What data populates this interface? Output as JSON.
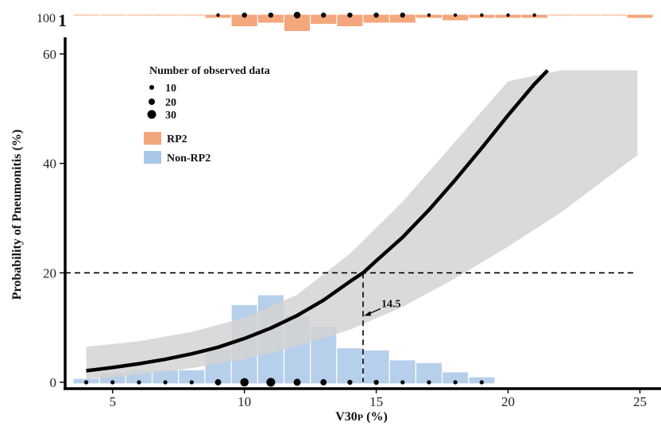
{
  "chart_data": {
    "type": "line",
    "ylabel": "Probability of Pneumonitis (%)",
    "xlabel_main": "V30",
    "xlabel_sub": "P",
    "xlabel_unit": " (%)",
    "xlim": [
      3.2,
      25.8
    ],
    "ylim": [
      0,
      61
    ],
    "x_ticks": [
      5,
      10,
      15,
      20,
      25
    ],
    "y_ticks": [
      0,
      20,
      40,
      60
    ],
    "curve": {
      "x": [
        4,
        5,
        6,
        7,
        8,
        9,
        10,
        11,
        12,
        13,
        14,
        14.5,
        15,
        16,
        17,
        18,
        19,
        20,
        21,
        21.5
      ],
      "y": [
        2.1,
        2.7,
        3.4,
        4.2,
        5.2,
        6.4,
        8.0,
        9.9,
        12.2,
        15.0,
        18.4,
        20.0,
        22.2,
        26.5,
        31.5,
        37.0,
        42.8,
        48.8,
        54.5,
        57.0
      ]
    },
    "ci_band": {
      "x": [
        4,
        6,
        8,
        10,
        12,
        14,
        16,
        18,
        20,
        22,
        24.9
      ],
      "lower": [
        0.5,
        1.4,
        2.6,
        4.2,
        6.6,
        9.6,
        13.8,
        19.0,
        24.8,
        31.0,
        41.5
      ],
      "upper": [
        6.5,
        7.5,
        9.2,
        11.8,
        16.0,
        23.5,
        33.0,
        44.0,
        55.0,
        57.0,
        57.0
      ]
    },
    "non_rp2_hist": {
      "name": "Non-RP2",
      "bin_centers": [
        4,
        5,
        6,
        7,
        8,
        9,
        10,
        11,
        12,
        13,
        14,
        15,
        16,
        17,
        18,
        19
      ],
      "values": [
        0.7,
        1.8,
        2.3,
        2.3,
        2.3,
        6.0,
        14.2,
        16.0,
        12.2,
        10.3,
        6.3,
        5.9,
        4.1,
        3.6,
        1.9,
        1.0
      ]
    },
    "rp2_hist": {
      "name": "RP2",
      "bin_centers": [
        4,
        5,
        6,
        7,
        8,
        9,
        10,
        11,
        12,
        13,
        14,
        15,
        16,
        17,
        18,
        19,
        20,
        21,
        22,
        23,
        24,
        25
      ],
      "depth": [
        0,
        0,
        0,
        0,
        0,
        0.1,
        0.45,
        0.3,
        0.65,
        0.35,
        0.45,
        0.3,
        0.3,
        0.1,
        0.2,
        0.1,
        0.1,
        0.1,
        0,
        0,
        0,
        0.1
      ]
    },
    "rp2_points": {
      "x": [
        9,
        10,
        11,
        12,
        13,
        14,
        15,
        16,
        17,
        18,
        19,
        20,
        21
      ],
      "size": [
        8,
        18,
        18,
        28,
        18,
        18,
        18,
        18,
        8,
        8,
        8,
        8,
        8
      ]
    },
    "non_rp2_points": {
      "x": [
        4,
        5,
        6,
        7,
        8,
        9,
        10,
        11,
        12,
        13,
        14,
        15,
        16,
        17,
        18,
        19
      ],
      "size": [
        8,
        8,
        8,
        8,
        8,
        18,
        28,
        30,
        22,
        18,
        12,
        12,
        8,
        8,
        8,
        8
      ]
    },
    "threshold": {
      "y": 20,
      "x": 14.5,
      "label": "14.5"
    },
    "top_panel_labels": {
      "left": "100",
      "right": "1"
    },
    "legend": {
      "title": "Number of observed data",
      "sizes": [
        {
          "label": "10",
          "size": 10
        },
        {
          "label": "20",
          "size": 20
        },
        {
          "label": "30",
          "size": 30
        }
      ],
      "fills": [
        {
          "label": "RP2",
          "color": "#f4a77c"
        },
        {
          "label": "Non-RP2",
          "color": "#a9c7e8"
        }
      ]
    },
    "colors": {
      "curve": "#000000",
      "band": "#d3d3d3",
      "non_rp2": "#a9c7e8",
      "rp2": "#f4a77c",
      "points": "#000000"
    }
  }
}
